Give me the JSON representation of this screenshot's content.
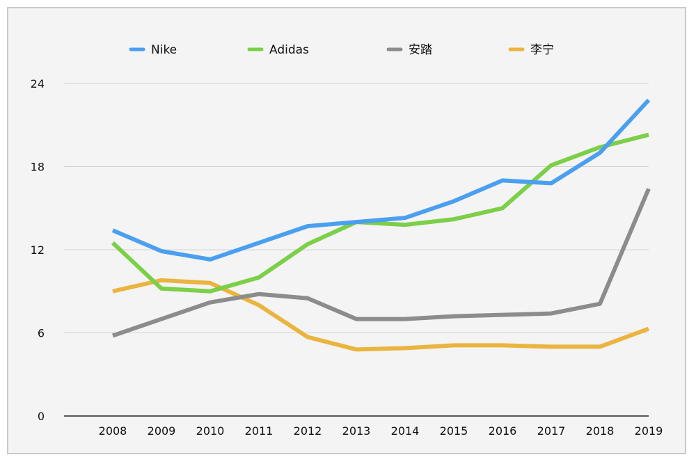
{
  "chart_data": {
    "type": "line",
    "title": "",
    "xlabel": "",
    "ylabel": "",
    "categories": [
      "2008",
      "2009",
      "2010",
      "2011",
      "2012",
      "2013",
      "2014",
      "2015",
      "2016",
      "2017",
      "2018",
      "2019"
    ],
    "y_ticks": [
      "0",
      "6",
      "12",
      "18",
      "24"
    ],
    "ylim": [
      0,
      24
    ],
    "grid": true,
    "legend_position": "top",
    "series": [
      {
        "name": "Nike",
        "color": "#4a9ff0",
        "values": [
          13.4,
          11.9,
          11.3,
          12.5,
          13.7,
          14.0,
          14.3,
          15.5,
          17.0,
          16.8,
          19.0,
          22.8
        ]
      },
      {
        "name": "Adidas",
        "color": "#7ccf48",
        "values": [
          12.5,
          9.2,
          9.0,
          10.0,
          12.4,
          14.0,
          13.8,
          14.2,
          15.0,
          18.1,
          19.4,
          20.3
        ]
      },
      {
        "name": "安踏",
        "color": "#8c8c8c",
        "values": [
          5.8,
          7.0,
          8.2,
          8.8,
          8.5,
          7.0,
          7.0,
          7.2,
          7.3,
          7.4,
          8.1,
          16.4
        ]
      },
      {
        "name": "李宁",
        "color": "#ebb43e",
        "values": [
          9.0,
          9.8,
          9.6,
          8.0,
          5.7,
          4.8,
          4.9,
          5.1,
          5.1,
          5.0,
          5.0,
          6.3
        ]
      }
    ]
  }
}
